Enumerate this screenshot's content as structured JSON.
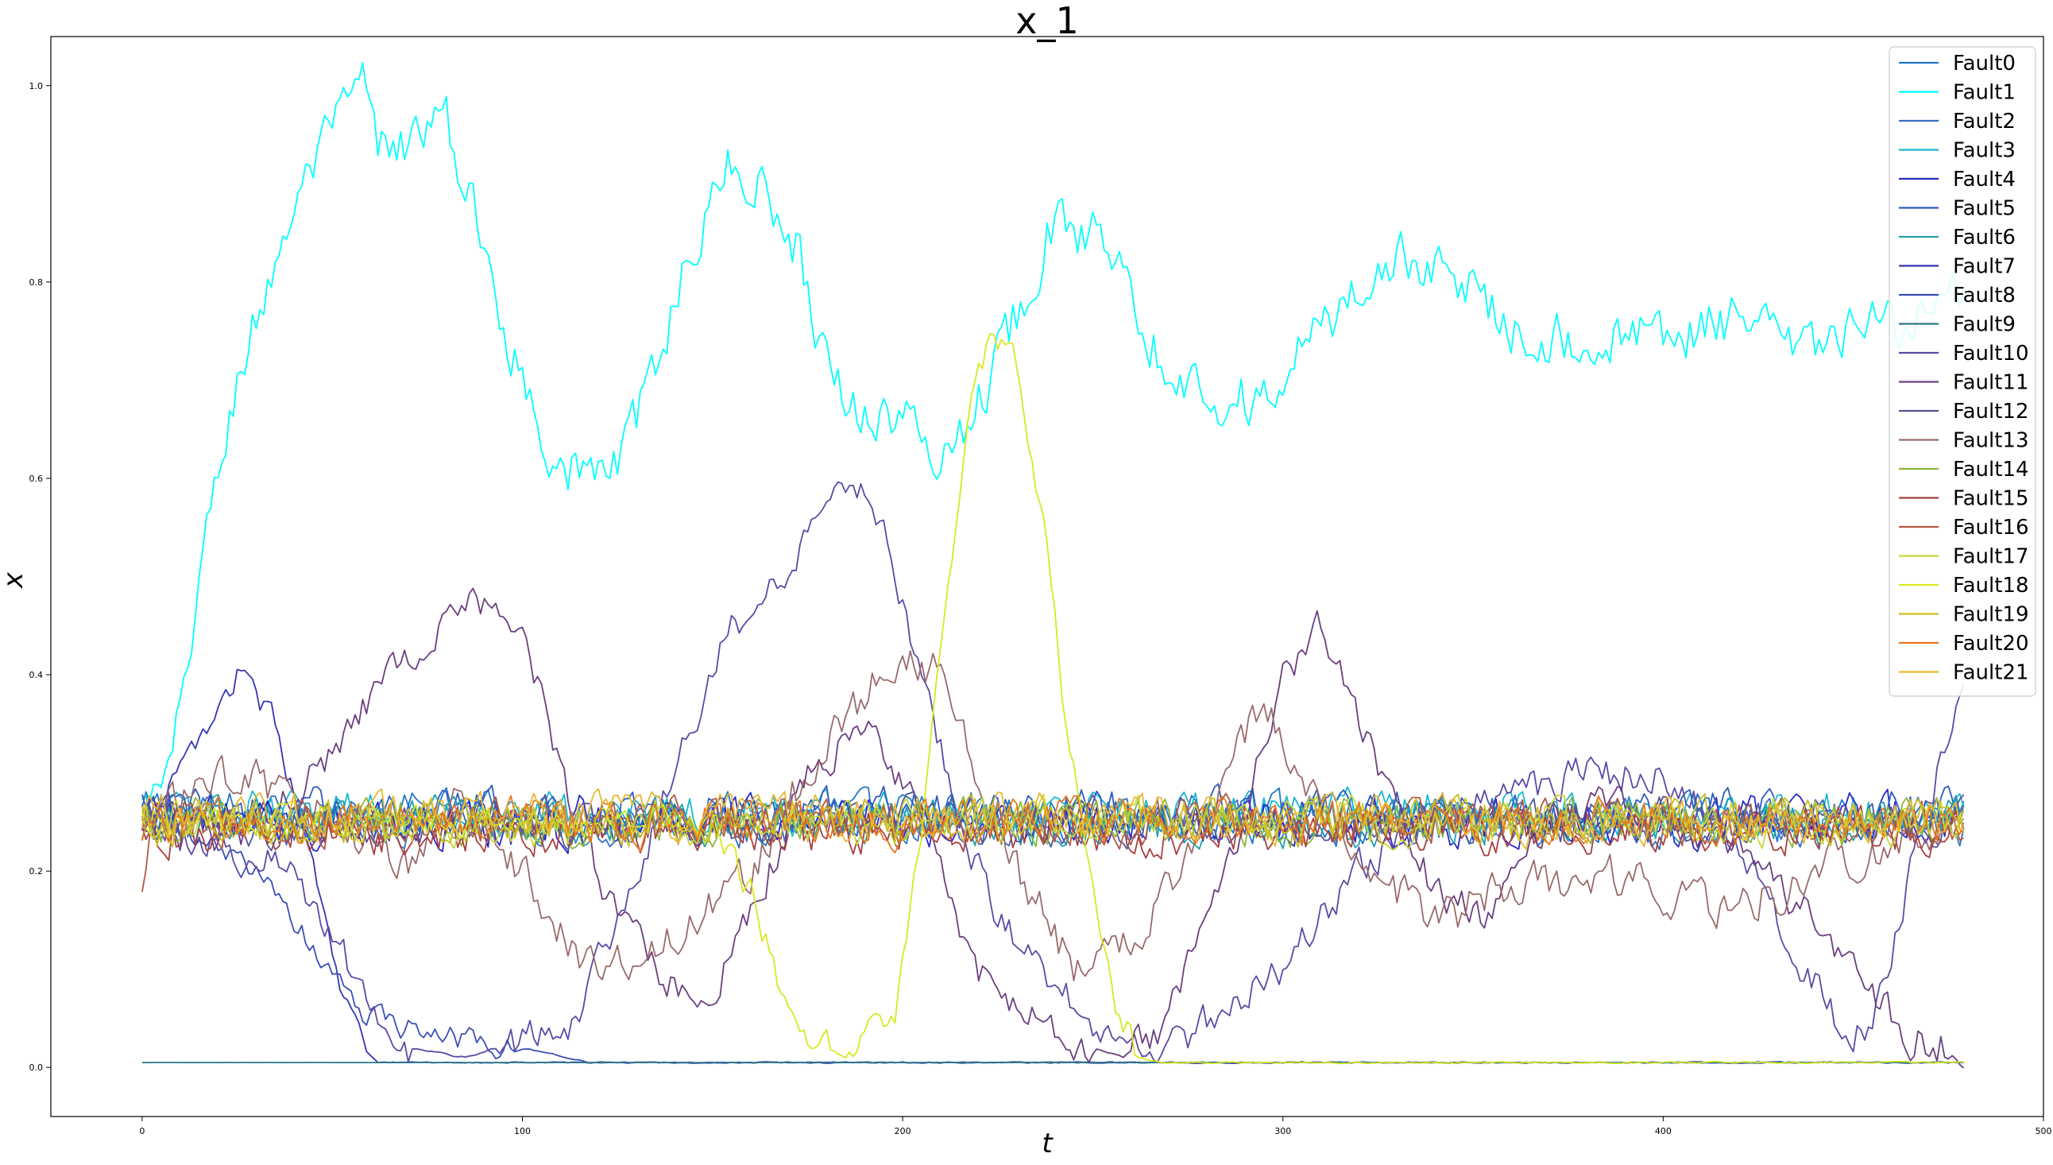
{
  "chart_data": {
    "type": "line",
    "title": "x_1",
    "xlabel": "t",
    "ylabel": "x",
    "xlim": [
      -24,
      500
    ],
    "ylim": [
      -0.05,
      1.05
    ],
    "xticks": [
      0,
      100,
      200,
      300,
      400,
      500
    ],
    "yticks": [
      0.0,
      0.2,
      0.4,
      0.6,
      0.8,
      1.0
    ],
    "xtick_labels": [
      "0",
      "100",
      "200",
      "300",
      "400",
      "500"
    ],
    "ytick_labels": [
      "0.0",
      "0.2",
      "0.4",
      "0.6",
      "0.8",
      "1.0"
    ],
    "grid": false,
    "legend_position": "top-right",
    "x_range": [
      0,
      479
    ],
    "series": [
      {
        "name": "Fault0",
        "color": "#1f77c8",
        "anchors": [
          [
            0,
            0.26
          ],
          [
            479,
            0.25
          ]
        ],
        "amp": 0.035
      },
      {
        "name": "Fault1",
        "color": "#00ffff",
        "anchors": [
          [
            0,
            0.25
          ],
          [
            8,
            0.3
          ],
          [
            15,
            0.5
          ],
          [
            25,
            0.7
          ],
          [
            40,
            0.88
          ],
          [
            50,
            0.95
          ],
          [
            58,
            1.0
          ],
          [
            62,
            0.93
          ],
          [
            72,
            0.95
          ],
          [
            80,
            0.96
          ],
          [
            85,
            0.9
          ],
          [
            92,
            0.8
          ],
          [
            100,
            0.7
          ],
          [
            108,
            0.63
          ],
          [
            115,
            0.6
          ],
          [
            122,
            0.61
          ],
          [
            128,
            0.63
          ],
          [
            135,
            0.72
          ],
          [
            145,
            0.84
          ],
          [
            155,
            0.92
          ],
          [
            162,
            0.9
          ],
          [
            172,
            0.84
          ],
          [
            180,
            0.72
          ],
          [
            188,
            0.67
          ],
          [
            200,
            0.66
          ],
          [
            210,
            0.62
          ],
          [
            220,
            0.68
          ],
          [
            230,
            0.77
          ],
          [
            238,
            0.85
          ],
          [
            248,
            0.85
          ],
          [
            258,
            0.84
          ],
          [
            265,
            0.74
          ],
          [
            275,
            0.7
          ],
          [
            285,
            0.68
          ],
          [
            295,
            0.68
          ],
          [
            305,
            0.73
          ],
          [
            315,
            0.77
          ],
          [
            325,
            0.82
          ],
          [
            340,
            0.82
          ],
          [
            350,
            0.79
          ],
          [
            360,
            0.76
          ],
          [
            375,
            0.74
          ],
          [
            390,
            0.74
          ],
          [
            405,
            0.75
          ],
          [
            420,
            0.76
          ],
          [
            435,
            0.73
          ],
          [
            445,
            0.74
          ],
          [
            460,
            0.76
          ],
          [
            470,
            0.77
          ],
          [
            479,
            0.78
          ]
        ],
        "amp": 0.045
      },
      {
        "name": "Fault2",
        "color": "#3a6fc0",
        "anchors": [
          [
            0,
            0.25
          ],
          [
            479,
            0.25
          ]
        ],
        "amp": 0.035
      },
      {
        "name": "Fault3",
        "color": "#1ab8d0",
        "anchors": [
          [
            0,
            0.26
          ],
          [
            479,
            0.26
          ]
        ],
        "amp": 0.035
      },
      {
        "name": "Fault4",
        "color": "#2828c8",
        "anchors": [
          [
            0,
            0.25
          ],
          [
            479,
            0.25
          ]
        ],
        "amp": 0.04
      },
      {
        "name": "Fault5",
        "color": "#2d5cc0",
        "anchors": [
          [
            0,
            0.26
          ],
          [
            479,
            0.26
          ]
        ],
        "amp": 0.035
      },
      {
        "name": "Fault6",
        "color": "#20a0b0",
        "anchors": [
          [
            0,
            0.25
          ],
          [
            479,
            0.25
          ]
        ],
        "amp": 0.035
      },
      {
        "name": "Fault7",
        "color": "#3535b8",
        "anchors": [
          [
            0,
            0.25
          ],
          [
            10,
            0.3
          ],
          [
            25,
            0.4
          ],
          [
            35,
            0.35
          ],
          [
            45,
            0.2
          ],
          [
            52,
            0.08
          ],
          [
            58,
            0.02
          ],
          [
            62,
            0.005
          ],
          [
            100,
            0.005
          ],
          [
            479,
            0.005
          ]
        ],
        "amp": 0.02
      },
      {
        "name": "Fault8",
        "color": "#3c4fb5",
        "anchors": [
          [
            0,
            0.26
          ],
          [
            30,
            0.2
          ],
          [
            45,
            0.12
          ],
          [
            60,
            0.05
          ],
          [
            80,
            0.03
          ],
          [
            100,
            0.02
          ],
          [
            118,
            0.005
          ],
          [
            479,
            0.005
          ]
        ],
        "amp": 0.02
      },
      {
        "name": "Fault9",
        "color": "#2a7a85",
        "anchors": [
          [
            0,
            0.005
          ],
          [
            479,
            0.005
          ]
        ],
        "amp": 0.002
      },
      {
        "name": "Fault10",
        "color": "#5a4aa8",
        "anchors": [
          [
            0,
            0.25
          ],
          [
            40,
            0.2
          ],
          [
            55,
            0.1
          ],
          [
            70,
            0.02
          ],
          [
            85,
            0.01
          ],
          [
            100,
            0.03
          ],
          [
            115,
            0.05
          ],
          [
            125,
            0.15
          ],
          [
            140,
            0.3
          ],
          [
            155,
            0.45
          ],
          [
            170,
            0.5
          ],
          [
            185,
            0.6
          ],
          [
            195,
            0.55
          ],
          [
            205,
            0.4
          ],
          [
            215,
            0.25
          ],
          [
            225,
            0.15
          ],
          [
            240,
            0.08
          ],
          [
            255,
            0.03
          ],
          [
            270,
            0.02
          ],
          [
            300,
            0.1
          ],
          [
            320,
            0.2
          ],
          [
            340,
            0.26
          ],
          [
            360,
            0.28
          ],
          [
            380,
            0.3
          ],
          [
            400,
            0.3
          ],
          [
            415,
            0.25
          ],
          [
            430,
            0.15
          ],
          [
            445,
            0.05
          ],
          [
            455,
            0.03
          ],
          [
            465,
            0.2
          ],
          [
            479,
            0.4
          ]
        ],
        "amp": 0.03
      },
      {
        "name": "Fault11",
        "color": "#6a3f80",
        "anchors": [
          [
            0,
            0.26
          ],
          [
            25,
            0.23
          ],
          [
            45,
            0.3
          ],
          [
            65,
            0.4
          ],
          [
            85,
            0.48
          ],
          [
            100,
            0.45
          ],
          [
            110,
            0.3
          ],
          [
            125,
            0.15
          ],
          [
            140,
            0.08
          ],
          [
            150,
            0.08
          ],
          [
            160,
            0.15
          ],
          [
            175,
            0.3
          ],
          [
            190,
            0.35
          ],
          [
            205,
            0.25
          ],
          [
            220,
            0.1
          ],
          [
            235,
            0.05
          ],
          [
            250,
            0.02
          ],
          [
            258,
            0.01
          ],
          [
            270,
            0.05
          ],
          [
            285,
            0.2
          ],
          [
            300,
            0.4
          ],
          [
            310,
            0.45
          ],
          [
            325,
            0.3
          ],
          [
            340,
            0.18
          ],
          [
            355,
            0.15
          ],
          [
            370,
            0.25
          ],
          [
            385,
            0.27
          ],
          [
            400,
            0.26
          ],
          [
            420,
            0.22
          ],
          [
            440,
            0.15
          ],
          [
            455,
            0.08
          ],
          [
            465,
            0.03
          ],
          [
            479,
            0.02
          ]
        ],
        "amp": 0.03
      },
      {
        "name": "Fault12",
        "color": "#55559a",
        "anchors": [
          [
            0,
            0.25
          ],
          [
            479,
            0.25
          ]
        ],
        "amp": 0.035
      },
      {
        "name": "Fault13",
        "color": "#9a6a6a",
        "anchors": [
          [
            0,
            0.25
          ],
          [
            25,
            0.3
          ],
          [
            50,
            0.25
          ],
          [
            70,
            0.2
          ],
          [
            85,
            0.28
          ],
          [
            100,
            0.2
          ],
          [
            115,
            0.12
          ],
          [
            130,
            0.1
          ],
          [
            145,
            0.15
          ],
          [
            160,
            0.2
          ],
          [
            175,
            0.3
          ],
          [
            190,
            0.38
          ],
          [
            200,
            0.42
          ],
          [
            210,
            0.4
          ],
          [
            220,
            0.3
          ],
          [
            230,
            0.2
          ],
          [
            245,
            0.1
          ],
          [
            260,
            0.12
          ],
          [
            280,
            0.25
          ],
          [
            295,
            0.38
          ],
          [
            305,
            0.3
          ],
          [
            320,
            0.2
          ],
          [
            340,
            0.15
          ],
          [
            360,
            0.18
          ],
          [
            380,
            0.2
          ],
          [
            400,
            0.18
          ],
          [
            420,
            0.16
          ],
          [
            440,
            0.2
          ],
          [
            460,
            0.22
          ],
          [
            479,
            0.25
          ]
        ],
        "amp": 0.035
      },
      {
        "name": "Fault14",
        "color": "#8cb83c",
        "anchors": [
          [
            0,
            0.25
          ],
          [
            479,
            0.25
          ]
        ],
        "amp": 0.035
      },
      {
        "name": "Fault15",
        "color": "#a84040",
        "anchors": [
          [
            0,
            0.24
          ],
          [
            479,
            0.24
          ]
        ],
        "amp": 0.035
      },
      {
        "name": "Fault16",
        "color": "#b05a45",
        "anchors": [
          [
            0,
            0.17
          ],
          [
            3,
            0.25
          ],
          [
            479,
            0.25
          ]
        ],
        "amp": 0.035
      },
      {
        "name": "Fault17",
        "color": "#c8d838",
        "anchors": [
          [
            0,
            0.25
          ],
          [
            479,
            0.25
          ]
        ],
        "amp": 0.035
      },
      {
        "name": "Fault18",
        "color": "#d8e820",
        "anchors": [
          [
            0,
            0.25
          ],
          [
            150,
            0.25
          ],
          [
            160,
            0.18
          ],
          [
            168,
            0.08
          ],
          [
            175,
            0.03
          ],
          [
            185,
            0.01
          ],
          [
            190,
            0.04
          ],
          [
            198,
            0.06
          ],
          [
            205,
            0.25
          ],
          [
            212,
            0.5
          ],
          [
            218,
            0.68
          ],
          [
            224,
            0.75
          ],
          [
            230,
            0.72
          ],
          [
            237,
            0.55
          ],
          [
            243,
            0.35
          ],
          [
            250,
            0.18
          ],
          [
            256,
            0.07
          ],
          [
            262,
            0.01
          ],
          [
            268,
            0.005
          ],
          [
            479,
            0.005
          ]
        ],
        "amp": 0.025
      },
      {
        "name": "Fault19",
        "color": "#c8c020",
        "anchors": [
          [
            0,
            0.25
          ],
          [
            479,
            0.25
          ]
        ],
        "amp": 0.035
      },
      {
        "name": "Fault20",
        "color": "#e87820",
        "anchors": [
          [
            0,
            0.25
          ],
          [
            479,
            0.25
          ]
        ],
        "amp": 0.035
      },
      {
        "name": "Fault21",
        "color": "#e8b830",
        "anchors": [
          [
            0,
            0.26
          ],
          [
            479,
            0.25
          ]
        ],
        "amp": 0.035
      }
    ]
  }
}
